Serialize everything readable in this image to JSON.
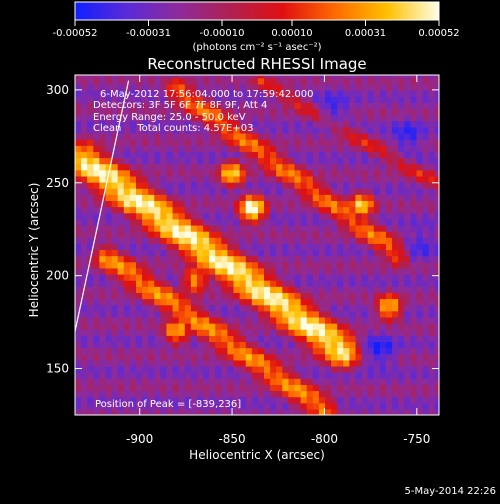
{
  "colorbar": {
    "tick_labels": [
      "-0.00052",
      "-0.00031",
      "-0.00010",
      "0.00010",
      "0.00031",
      "0.00052"
    ],
    "range": [
      -0.00052,
      0.00052
    ],
    "unit_label": "(photons cm⁻² s⁻¹ asec⁻²)",
    "colors": [
      "#1020ff",
      "#5a2ad8",
      "#8e2b9a",
      "#b02050",
      "#e01010",
      "#ff6a00",
      "#ffc000",
      "#ffffe8"
    ]
  },
  "title": "Reconstructed RHESSI Image",
  "annotations": [
    "6-May-2012 17:56:04.000 to 17:59:42.000",
    "Detectors: 3F 5F 6F 7F 8F 9F, Att 4",
    "Energy Range: 25.0 - 50.0 keV",
    "Clean     Total counts: 4.57E+03"
  ],
  "peak_label": "Position of Peak = [-839,236]",
  "footer_timestamp": "5-May-2014 22:26",
  "chart_data": {
    "type": "heatmap",
    "title": "Reconstructed RHESSI Image",
    "xlabel": "Heliocentric X (arcsec)",
    "ylabel": "Heliocentric Y (arcsec)",
    "xlim": [
      -935,
      -738
    ],
    "ylim": [
      125,
      308
    ],
    "x_ticks": [
      -900,
      -850,
      -800,
      -750
    ],
    "y_ticks": [
      150,
      200,
      250,
      300
    ],
    "x_tick_labels": [
      "-900",
      "-850",
      "-800",
      "-750"
    ],
    "y_tick_labels": [
      "150",
      "200",
      "250",
      "300"
    ],
    "limb_line": [
      [
        -935,
        170
      ],
      [
        -906,
        305
      ]
    ],
    "bright_bands": [
      {
        "from": [
          -930,
          262
        ],
        "to": [
          -790,
          160
        ],
        "width_arcsec": 18,
        "peak_level": 0.95
      },
      {
        "from": [
          -918,
          210
        ],
        "to": [
          -800,
          128
        ],
        "width_arcsec": 14,
        "peak_level": 0.75
      },
      {
        "from": [
          -880,
          300
        ],
        "to": [
          -760,
          212
        ],
        "width_arcsec": 13,
        "peak_level": 0.7
      },
      {
        "from": [
          -835,
          305
        ],
        "to": [
          -740,
          250
        ],
        "width_arcsec": 10,
        "peak_level": 0.55
      }
    ],
    "bright_spots": [
      {
        "center": [
          -839,
          236
        ],
        "level": 1.0
      },
      {
        "center": [
          -905,
          240
        ],
        "level": 0.9
      },
      {
        "center": [
          -780,
          238
        ],
        "level": 0.85
      },
      {
        "center": [
          -765,
          183
        ],
        "level": 0.85
      },
      {
        "center": [
          -870,
          198
        ],
        "level": 0.8
      },
      {
        "center": [
          -880,
          170
        ],
        "level": 0.8
      },
      {
        "center": [
          -850,
          255
        ],
        "level": 0.85
      }
    ],
    "dark_regions": [
      {
        "center": [
          -770,
          160
        ],
        "level": 0.05
      },
      {
        "center": [
          -755,
          275
        ],
        "level": 0.08
      },
      {
        "center": [
          -795,
          290
        ],
        "level": 0.1
      },
      {
        "center": [
          -748,
          218
        ],
        "level": 0.12
      }
    ],
    "peak": {
      "x": -839,
      "y": 236
    }
  }
}
